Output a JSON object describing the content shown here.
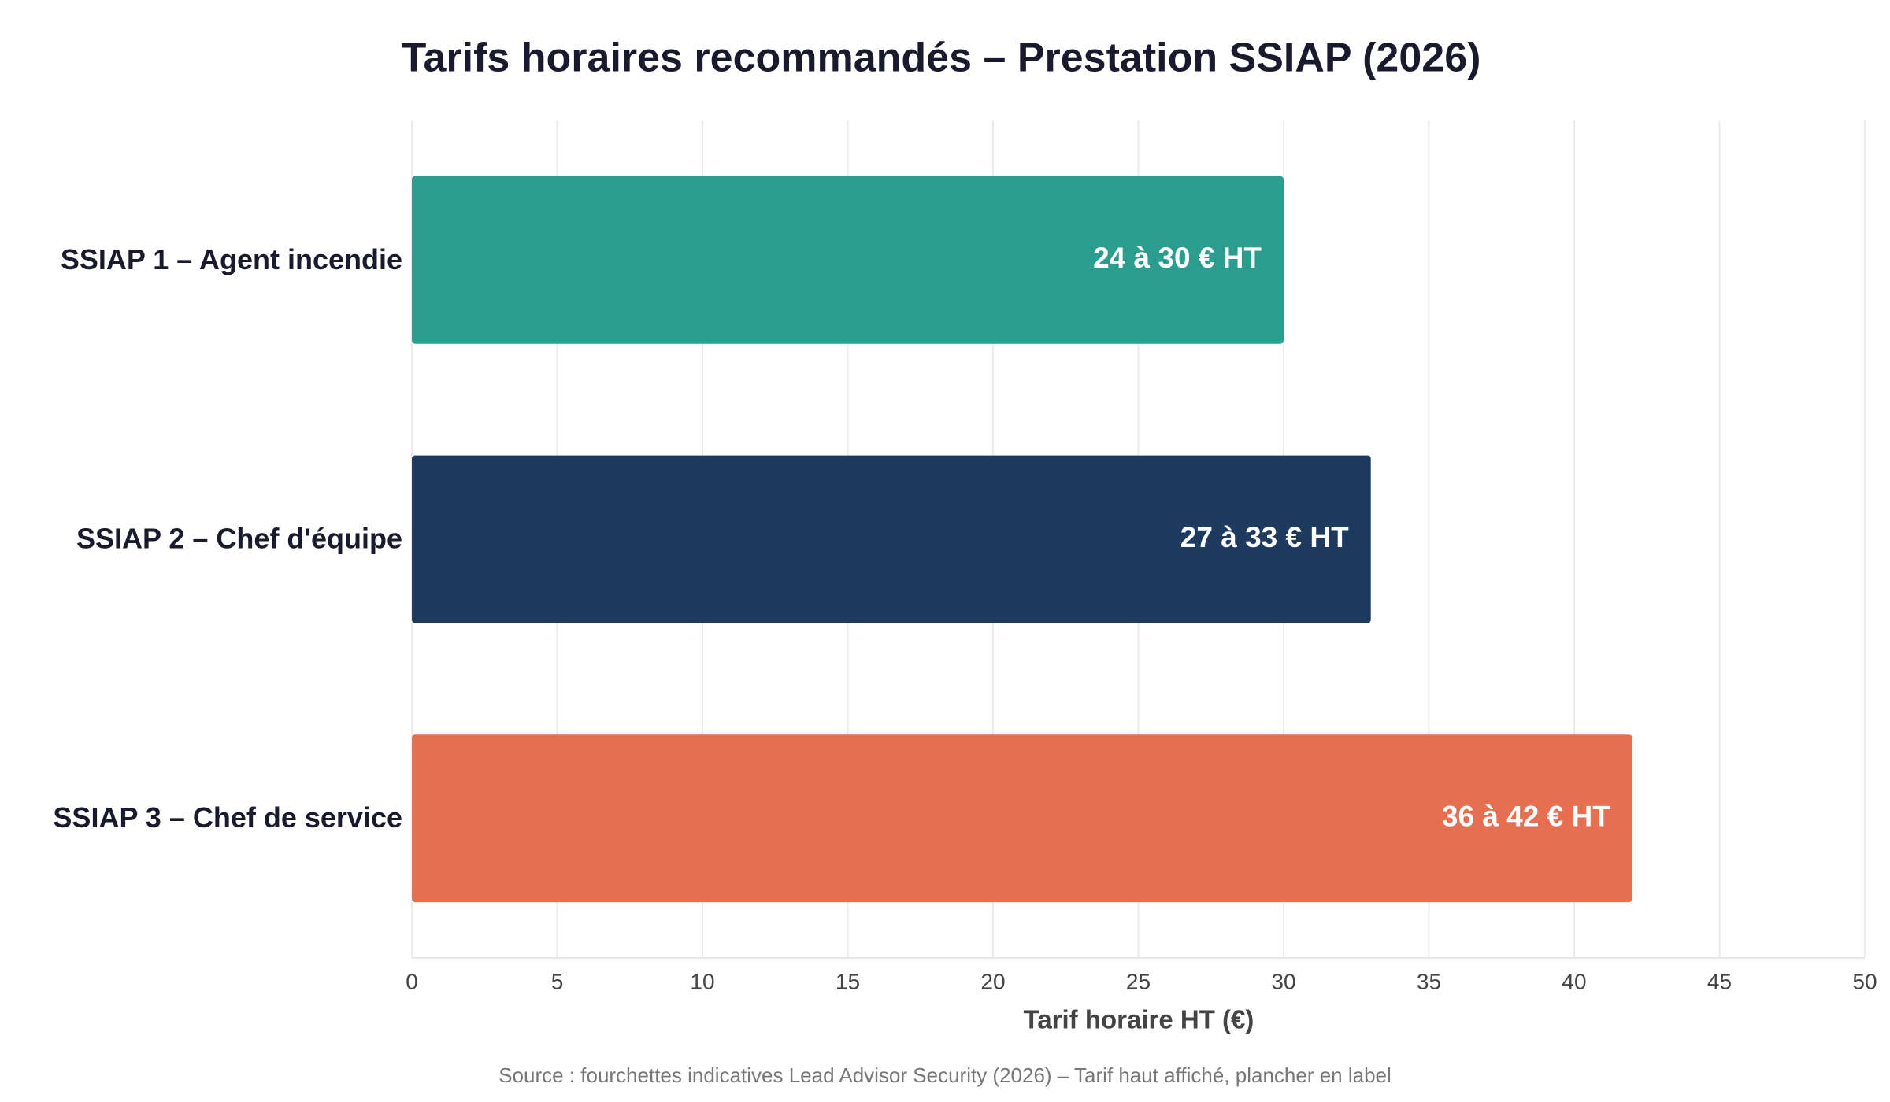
{
  "chart_data": {
    "type": "bar",
    "orientation": "horizontal",
    "title": "Tarifs horaires recommandés – Prestation SSIAP (2026)",
    "x_label": "Tarif horaire HT (€)",
    "source": "Source : fourchettes indicatives Lead Advisor Security (2026) – Tarif haut affiché, plancher en label",
    "categories": [
      "SSIAP 1 – Agent incendie",
      "SSIAP 2 – Chef d'équipe",
      "SSIAP 3 – Chef de service"
    ],
    "values": [
      30,
      33,
      42
    ],
    "value_labels": [
      "24 à 30 € HT",
      "27 à 33 € HT",
      "36 à 42 € HT"
    ],
    "colors": [
      "#2a9d8f",
      "#1f3a5f",
      "#e76f51"
    ],
    "xlim": [
      0,
      50
    ],
    "xticks": [
      0,
      5,
      10,
      15,
      20,
      25,
      30,
      35,
      40,
      45,
      50
    ],
    "grid": true
  }
}
